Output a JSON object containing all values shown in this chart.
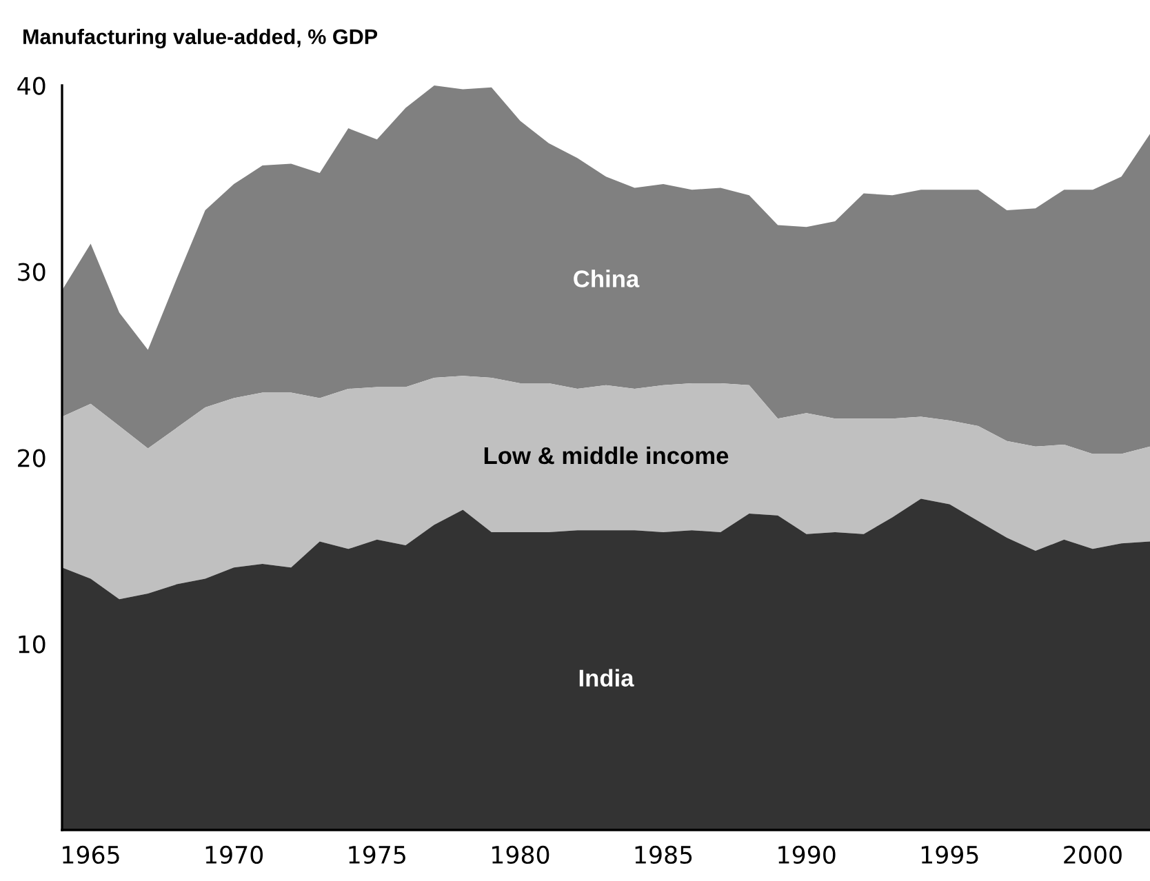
{
  "chart_data": {
    "type": "area",
    "title": "Manufacturing value-added, % GDP",
    "x": [
      1964,
      1965,
      1966,
      1967,
      1968,
      1969,
      1970,
      1971,
      1972,
      1973,
      1974,
      1975,
      1976,
      1977,
      1978,
      1979,
      1980,
      1981,
      1982,
      1983,
      1984,
      1985,
      1986,
      1987,
      1988,
      1989,
      1990,
      1991,
      1992,
      1993,
      1994,
      1995,
      1996,
      1997,
      1998,
      1999,
      2000,
      2001,
      2002
    ],
    "series": [
      {
        "name": "China",
        "color": "#808080",
        "values": [
          29.0,
          31.5,
          27.8,
          25.8,
          29.6,
          33.3,
          34.7,
          35.7,
          35.8,
          35.3,
          37.7,
          37.1,
          38.8,
          40.0,
          39.8,
          39.9,
          38.1,
          36.9,
          36.1,
          35.1,
          34.5,
          34.7,
          34.4,
          34.5,
          34.1,
          32.5,
          32.4,
          32.7,
          34.2,
          34.1,
          34.4,
          34.4,
          34.4,
          33.3,
          33.4,
          34.4,
          34.4,
          35.1,
          37.4
        ]
      },
      {
        "name": "Low & middle income",
        "color": "#c0c0c0",
        "values": [
          22.2,
          22.9,
          21.7,
          20.5,
          21.6,
          22.7,
          23.2,
          23.5,
          23.5,
          23.2,
          23.7,
          23.8,
          23.8,
          24.3,
          24.4,
          24.3,
          24.0,
          24.0,
          23.7,
          23.9,
          23.7,
          23.9,
          24.0,
          24.0,
          23.9,
          22.1,
          22.4,
          22.1,
          22.1,
          22.1,
          22.2,
          22.0,
          21.7,
          20.9,
          20.6,
          20.7,
          20.2,
          20.2,
          20.6
        ]
      },
      {
        "name": "India",
        "color": "#333333",
        "values": [
          14.1,
          13.5,
          12.4,
          12.7,
          13.2,
          13.5,
          14.1,
          14.3,
          14.1,
          15.5,
          15.1,
          15.6,
          15.3,
          16.4,
          17.2,
          16.0,
          16.0,
          16.0,
          16.1,
          16.1,
          16.1,
          16.0,
          16.1,
          16.0,
          17.0,
          16.9,
          15.9,
          16.0,
          15.9,
          16.8,
          17.8,
          17.5,
          16.6,
          15.7,
          15.0,
          15.6,
          15.1,
          15.4,
          15.5
        ]
      }
    ],
    "xlim": [
      1964,
      2002
    ],
    "ylim": [
      0,
      40
    ],
    "xticks": [
      1965,
      1970,
      1975,
      1980,
      1985,
      1990,
      1995,
      2000
    ],
    "yticks": [
      10,
      20,
      30,
      40
    ],
    "grid": false,
    "legend": false
  }
}
